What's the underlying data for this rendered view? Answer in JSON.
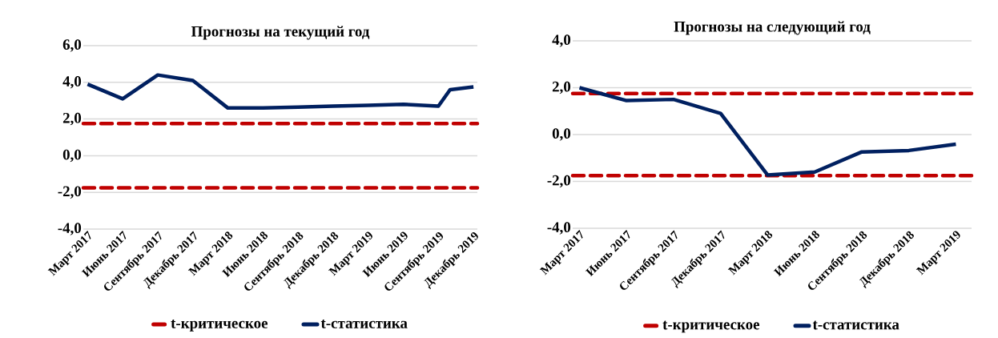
{
  "chart_data": [
    {
      "type": "line",
      "title": "Прогнозы на текущий год",
      "x": [
        "2017-03",
        "2017-06",
        "2017-09",
        "2017-12",
        "2018-03",
        "2018-06",
        "2018-09",
        "2018-12",
        "2019-03",
        "2019-06",
        "2019-09",
        "2019-10",
        "2019-12"
      ],
      "series": [
        {
          "name": "t-статистика",
          "color": "#002060",
          "values": [
            3.9,
            3.1,
            4.4,
            4.1,
            2.6,
            2.6,
            2.65,
            2.7,
            2.75,
            2.8,
            2.7,
            3.6,
            3.75
          ]
        }
      ],
      "ref_lines": [
        {
          "axis": "y",
          "value": 1.75,
          "label": "t-критическое",
          "color": "#c00000",
          "line_style": "dashed"
        },
        {
          "axis": "y",
          "value": -1.75,
          "color": "#c00000",
          "line_style": "dashed"
        }
      ],
      "xlim": [
        "2017-02-20",
        "2019-12-11"
      ],
      "xticks": [
        {
          "value": "2017-03",
          "label": "Март 2017"
        },
        {
          "value": "2017-06",
          "label": "Июнь 2017"
        },
        {
          "value": "2017-09",
          "label": "Сентябрь 2017"
        },
        {
          "value": "2017-12",
          "label": "Декабрь 2017"
        },
        {
          "value": "2018-03",
          "label": "Март 2018"
        },
        {
          "value": "2018-06",
          "label": "Июнь 2018"
        },
        {
          "value": "2018-09",
          "label": "Сентябрь 2018"
        },
        {
          "value": "2018-12",
          "label": "Декабрь 2018"
        },
        {
          "value": "2019-03",
          "label": "Март 2019"
        },
        {
          "value": "2019-06",
          "label": "Июнь 2019"
        },
        {
          "value": "2019-09",
          "label": "Сентябрь 2019"
        },
        {
          "value": "2019-12",
          "label": "Декабрь 2019"
        }
      ],
      "ylim": [
        -4,
        6
      ],
      "yticks": [
        {
          "value": -4,
          "label": "-4,0"
        },
        {
          "value": -2,
          "label": "-2,0"
        },
        {
          "value": 0,
          "label": "0,0"
        },
        {
          "value": 2,
          "label": "2,0"
        },
        {
          "value": 4,
          "label": "4,0"
        },
        {
          "value": 6,
          "label": "6,0"
        }
      ],
      "grid": "y",
      "legend": "bottom",
      "marker": "none",
      "line_style": "solid"
    },
    {
      "type": "line",
      "title": "Прогнозы на следующий год",
      "x": [
        "2017-03",
        "2017-06",
        "2017-09",
        "2017-12",
        "2018-03",
        "2018-06",
        "2018-09",
        "2018-12",
        "2019-03"
      ],
      "series": [
        {
          "name": "t-статистика",
          "color": "#002060",
          "values": [
            2.0,
            1.45,
            1.5,
            0.9,
            -1.73,
            -1.6,
            -0.74,
            -0.68,
            -0.41
          ]
        }
      ],
      "ref_lines": [
        {
          "axis": "y",
          "value": 1.75,
          "label": "t-критическое",
          "color": "#c00000",
          "line_style": "dashed"
        },
        {
          "axis": "y",
          "value": -1.75,
          "color": "#c00000",
          "line_style": "dashed"
        }
      ],
      "xlim": [
        "2017-02-18",
        "2019-04-01"
      ],
      "xticks": [
        {
          "value": "2017-03",
          "label": "Март 2017"
        },
        {
          "value": "2017-06",
          "label": "Июнь 2017"
        },
        {
          "value": "2017-09",
          "label": "Сентябрь 2017"
        },
        {
          "value": "2017-12",
          "label": "Декабрь 2017"
        },
        {
          "value": "2018-03",
          "label": "Март 2018"
        },
        {
          "value": "2018-06",
          "label": "Июнь 2018"
        },
        {
          "value": "2018-09",
          "label": "Сентябрь 2018"
        },
        {
          "value": "2018-12",
          "label": "Декабрь 2018"
        },
        {
          "value": "2019-03",
          "label": "Март 2019"
        }
      ],
      "ylim": [
        -4,
        4
      ],
      "yticks": [
        {
          "value": -4,
          "label": "-4,0"
        },
        {
          "value": -2,
          "label": "-2,0"
        },
        {
          "value": 0,
          "label": "0,0"
        },
        {
          "value": 2,
          "label": "2,0"
        },
        {
          "value": 4,
          "label": "4,0"
        }
      ],
      "grid": "y",
      "legend": "bottom",
      "marker": "none",
      "line_style": "solid"
    }
  ]
}
